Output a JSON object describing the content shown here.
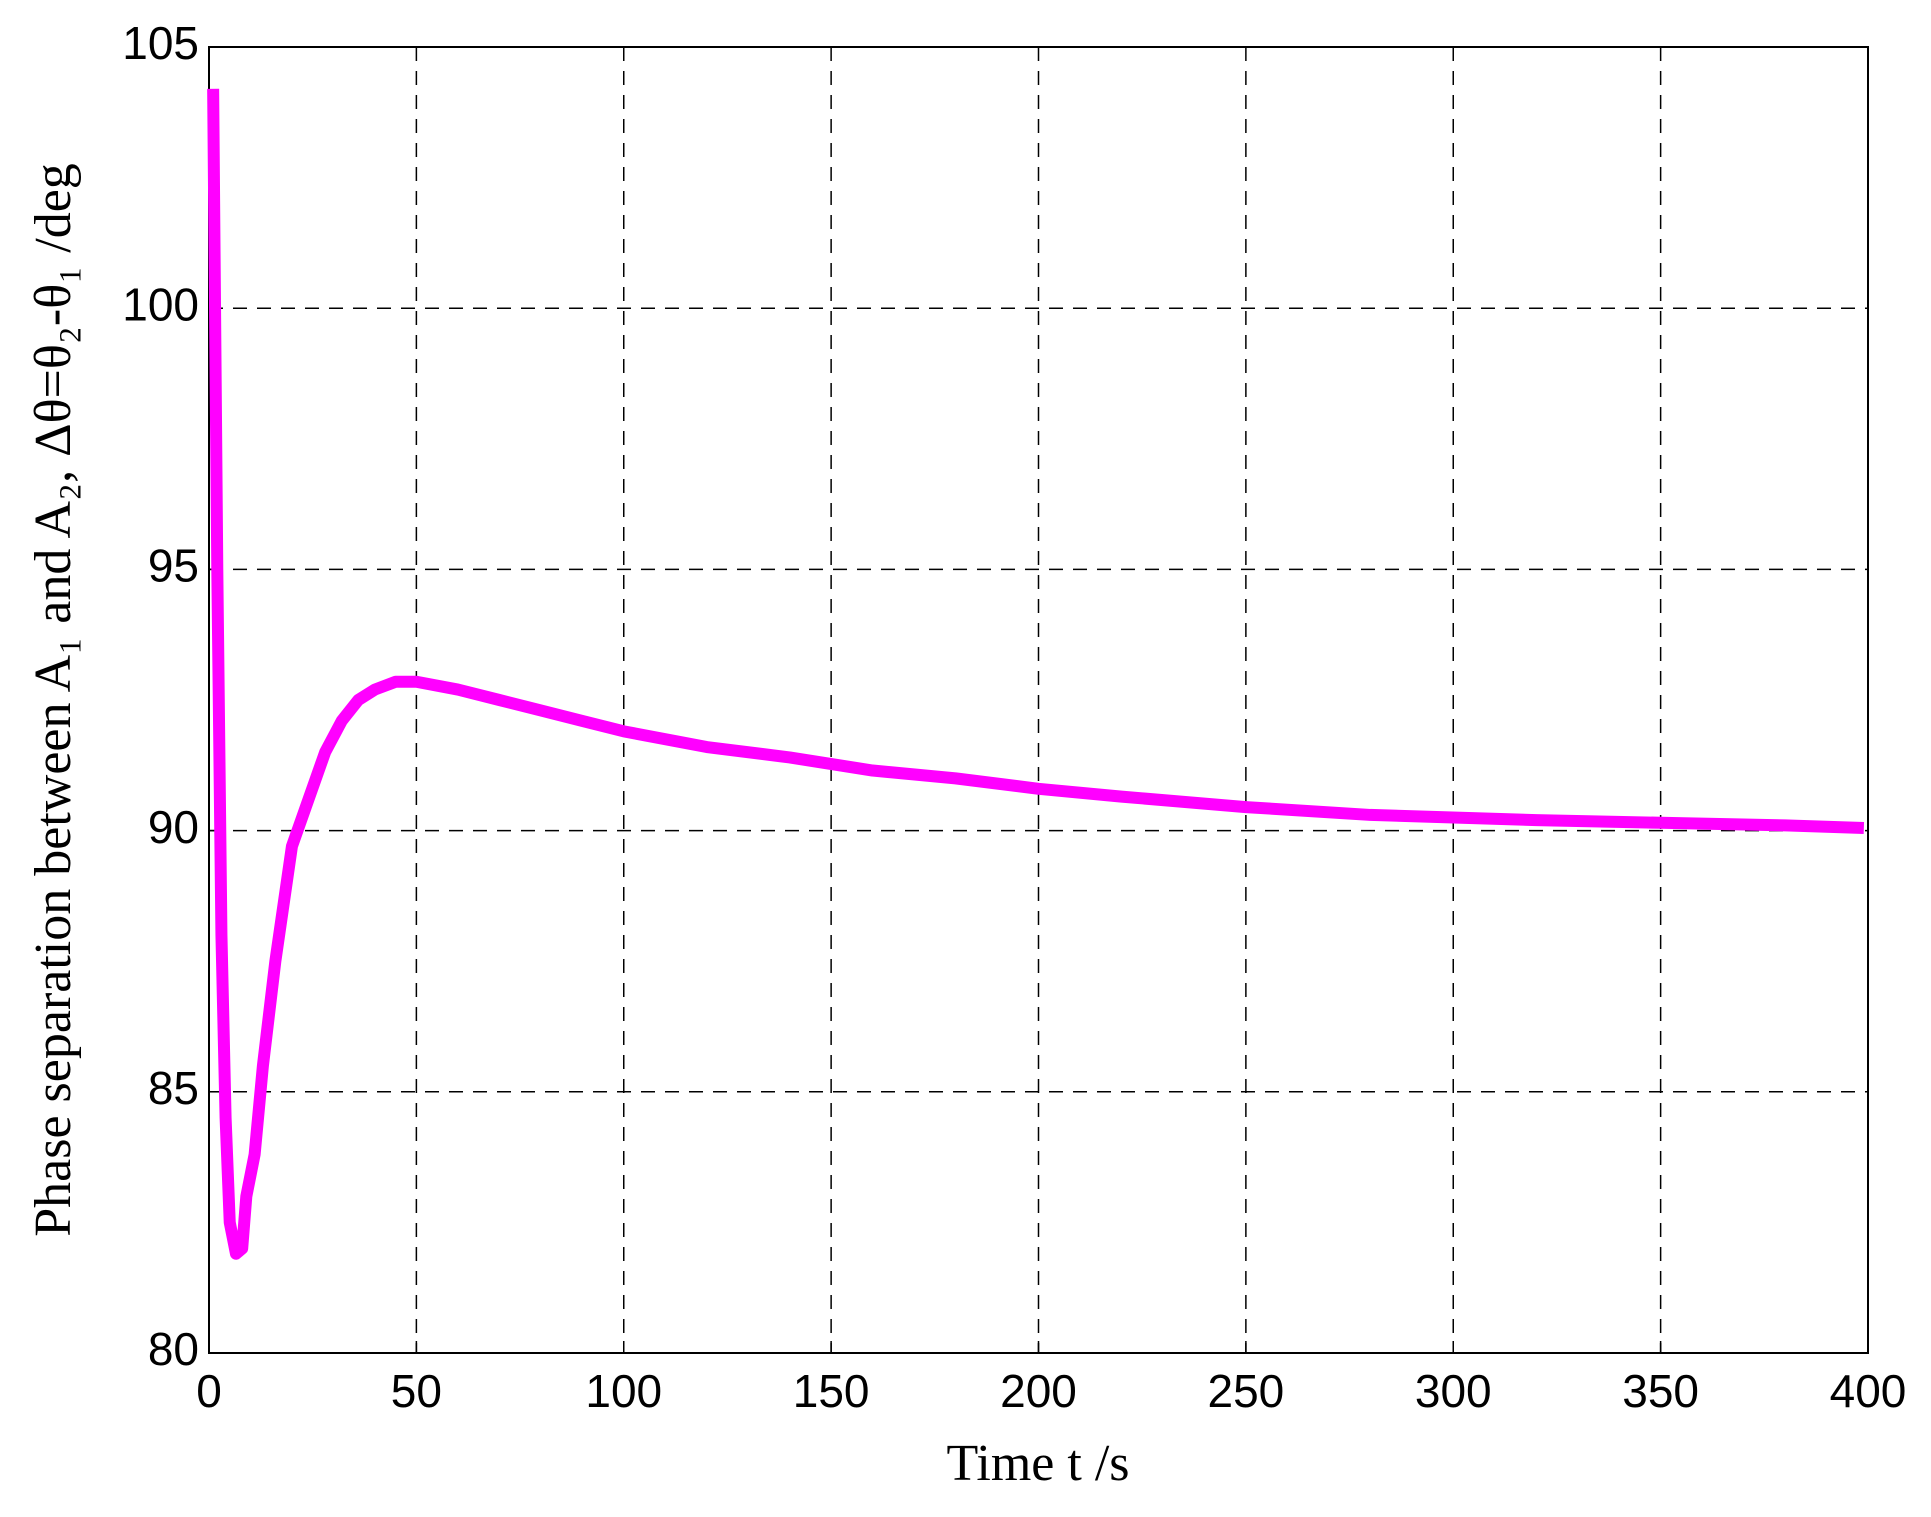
{
  "chart_data": {
    "type": "line",
    "xlabel": "Time  t  /s",
    "ylabel": "Phase separation between A₁ and A₂, Δθ=θ₂-θ₁ /deg",
    "series": [
      {
        "name": "Δθ",
        "color": "#ff00ff",
        "x": [
          1,
          2,
          3,
          4,
          5,
          6.5,
          8,
          9,
          11,
          13,
          16,
          20,
          24,
          28,
          32,
          36,
          40,
          45,
          50,
          60,
          70,
          80,
          90,
          100,
          120,
          140,
          160,
          180,
          200,
          220,
          250,
          280,
          320,
          350,
          380,
          399
        ],
        "values": [
          104.2,
          95,
          88,
          84.5,
          82.5,
          81.9,
          82.0,
          83,
          83.8,
          85.5,
          87.5,
          89.7,
          90.6,
          91.5,
          92.1,
          92.5,
          92.7,
          92.85,
          92.85,
          92.7,
          92.5,
          92.3,
          92.1,
          91.9,
          91.6,
          91.4,
          91.15,
          91.0,
          90.8,
          90.65,
          90.45,
          90.3,
          90.2,
          90.15,
          90.1,
          90.05
        ]
      }
    ],
    "xlim": [
      0,
      400
    ],
    "xticks": [
      0,
      50,
      100,
      150,
      200,
      250,
      300,
      350,
      400
    ],
    "ylim": [
      80,
      105
    ],
    "yticks": [
      80,
      85,
      90,
      95,
      100,
      105
    ],
    "grid": true
  }
}
